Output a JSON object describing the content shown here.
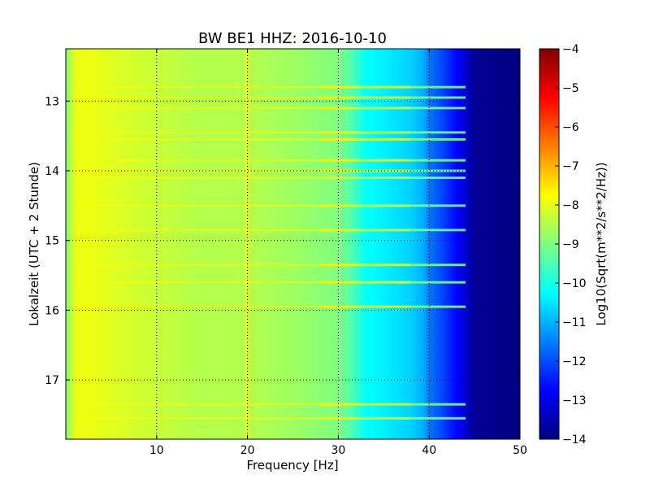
{
  "chart_data": {
    "type": "heatmap",
    "title": "BW BE1 HHZ: 2016-10-10",
    "xlabel": "Frequency [Hz]",
    "ylabel": "Lokalzeit (UTC + 2 Stunde)",
    "xlim": [
      0,
      50
    ],
    "ylim": [
      12.25,
      17.85
    ],
    "y_inverted": true,
    "x_ticks": [
      10,
      20,
      30,
      40,
      50
    ],
    "y_ticks": [
      13,
      14,
      15,
      16,
      17
    ],
    "grid": true,
    "colormap": "jet",
    "colorbar": {
      "label": "Log10(Sqrt(m**2/s**2/Hz))",
      "range": [
        -14,
        -4
      ],
      "ticks": [
        -4,
        -5,
        -6,
        -7,
        -8,
        -9,
        -10,
        -11,
        -12,
        -13,
        -14
      ]
    },
    "frequency_profile": {
      "frequency_hz": [
        0,
        1,
        2,
        4,
        6,
        10,
        15,
        19.5,
        20,
        20.5,
        25,
        30,
        31,
        32,
        33,
        35,
        38,
        39.5,
        40,
        41,
        42,
        43,
        44,
        45,
        50
      ],
      "log10_amplitude": [
        -9.0,
        -8.0,
        -7.9,
        -8.0,
        -8.1,
        -8.3,
        -8.5,
        -8.5,
        -8.1,
        -8.5,
        -8.7,
        -9.0,
        -9.3,
        -9.7,
        -10.2,
        -10.4,
        -10.7,
        -11.1,
        -11.6,
        -11.9,
        -12.3,
        -12.7,
        -13.2,
        -13.8,
        -14.0
      ]
    },
    "broadband_events_hour": [
      12.8,
      12.95,
      13.1,
      13.45,
      13.55,
      13.85,
      14.0,
      14.1,
      14.5,
      14.85,
      15.35,
      15.6,
      15.95,
      17.35,
      17.55
    ]
  },
  "colors": {
    "grid": "#000000",
    "frame": "#000000",
    "background": "#ffffff"
  }
}
